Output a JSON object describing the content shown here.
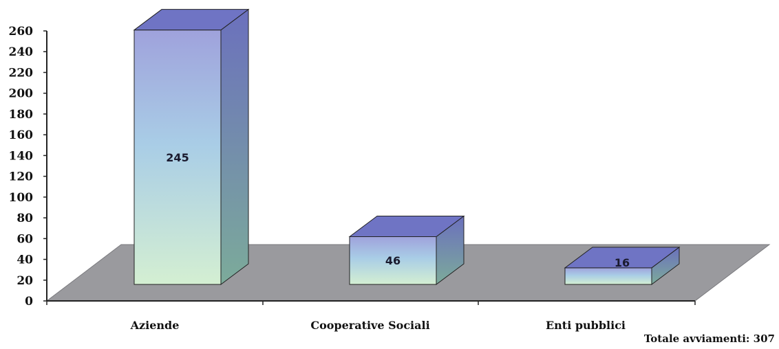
{
  "chart_data": {
    "type": "bar",
    "categories": [
      "Aziende",
      "Cooperative Sociali",
      "Enti pubblici"
    ],
    "values": [
      245,
      46,
      16
    ],
    "title": "",
    "xlabel": "",
    "ylabel": "",
    "ylim": [
      0,
      260
    ],
    "yticks": [
      0,
      20,
      40,
      60,
      80,
      100,
      120,
      140,
      160,
      180,
      200,
      220,
      240,
      260
    ],
    "data_labels": [
      "245",
      "46",
      "16"
    ],
    "style": "3d-column",
    "grid": false,
    "legend": "none",
    "colors": {
      "floor": "#9a9a9e",
      "bar_top": "#6f74c4",
      "bar_side": "#6a8fb0",
      "bar_front_top": "#9fa2dc",
      "bar_front_mid": "#a9cde6",
      "bar_front_bottom": "#d4efd2"
    }
  },
  "note": {
    "total_label": "Totale avviamenti: 307"
  }
}
